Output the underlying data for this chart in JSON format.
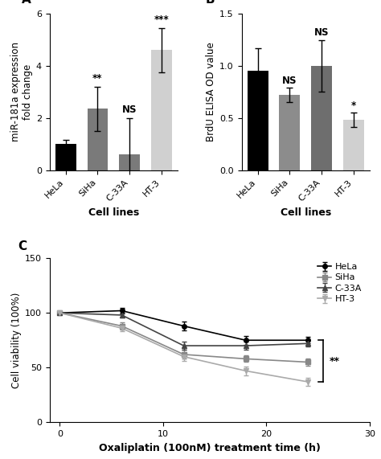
{
  "panel_A": {
    "categories": [
      "HeLa",
      "SiHa",
      "C-33A",
      "HT-3"
    ],
    "values": [
      1.0,
      2.35,
      0.6,
      4.6
    ],
    "errors": [
      0.15,
      0.85,
      1.4,
      0.85
    ],
    "colors": [
      "#000000",
      "#7a7a7a",
      "#7a7a7a",
      "#d0d0d0"
    ],
    "ylabel": "miR-181a expression\nfold change",
    "xlabel": "Cell lines",
    "ylim": [
      0,
      6
    ],
    "yticks": [
      0,
      2,
      4,
      6
    ],
    "significance": [
      "",
      "**",
      "NS",
      "***"
    ],
    "label": "A"
  },
  "panel_B": {
    "categories": [
      "HeLa",
      "SiHa",
      "C-33A",
      "HT-3"
    ],
    "values": [
      0.95,
      0.72,
      1.0,
      0.48
    ],
    "errors": [
      0.22,
      0.07,
      0.25,
      0.07
    ],
    "colors": [
      "#000000",
      "#8c8c8c",
      "#6e6e6e",
      "#d0d0d0"
    ],
    "ylabel": "BrdU ELISA OD value",
    "xlabel": "Cell lines",
    "ylim": [
      0,
      1.5
    ],
    "yticks": [
      0.0,
      0.5,
      1.0,
      1.5
    ],
    "significance": [
      "",
      "NS",
      "NS",
      "*"
    ],
    "label": "B"
  },
  "panel_C": {
    "x": [
      0,
      6,
      12,
      18,
      24
    ],
    "lines": {
      "HeLa": {
        "y": [
          100,
          102,
          88,
          75,
          75
        ],
        "yerr": [
          1.5,
          2.5,
          4,
          4,
          3
        ],
        "color": "#000000",
        "marker": "o"
      },
      "SiHa": {
        "y": [
          100,
          88,
          62,
          58,
          55
        ],
        "yerr": [
          1.5,
          3,
          4,
          3,
          3
        ],
        "color": "#888888",
        "marker": "s"
      },
      "C-33A": {
        "y": [
          100,
          98,
          70,
          70,
          72
        ],
        "yerr": [
          1.5,
          2.5,
          4,
          4,
          3
        ],
        "color": "#444444",
        "marker": "^"
      },
      "HT-3": {
        "y": [
          100,
          86,
          60,
          47,
          37
        ],
        "yerr": [
          1.5,
          3,
          4,
          4,
          4
        ],
        "color": "#aaaaaa",
        "marker": "v"
      }
    },
    "ylabel": "Cell viability (100%)",
    "xlabel": "Oxaliplatin (100nM) treatment time (h)",
    "ylim": [
      0,
      150
    ],
    "yticks": [
      0,
      50,
      100,
      150
    ],
    "xlim": [
      -1,
      30
    ],
    "xticks": [
      0,
      10,
      20,
      30
    ],
    "significance": "**",
    "label": "C",
    "bracket_x": 25.5,
    "bracket_y_low": 37,
    "bracket_y_high": 75
  },
  "background_color": "#ffffff",
  "font_size": 9,
  "label_fontsize": 11,
  "tick_fontsize": 8
}
